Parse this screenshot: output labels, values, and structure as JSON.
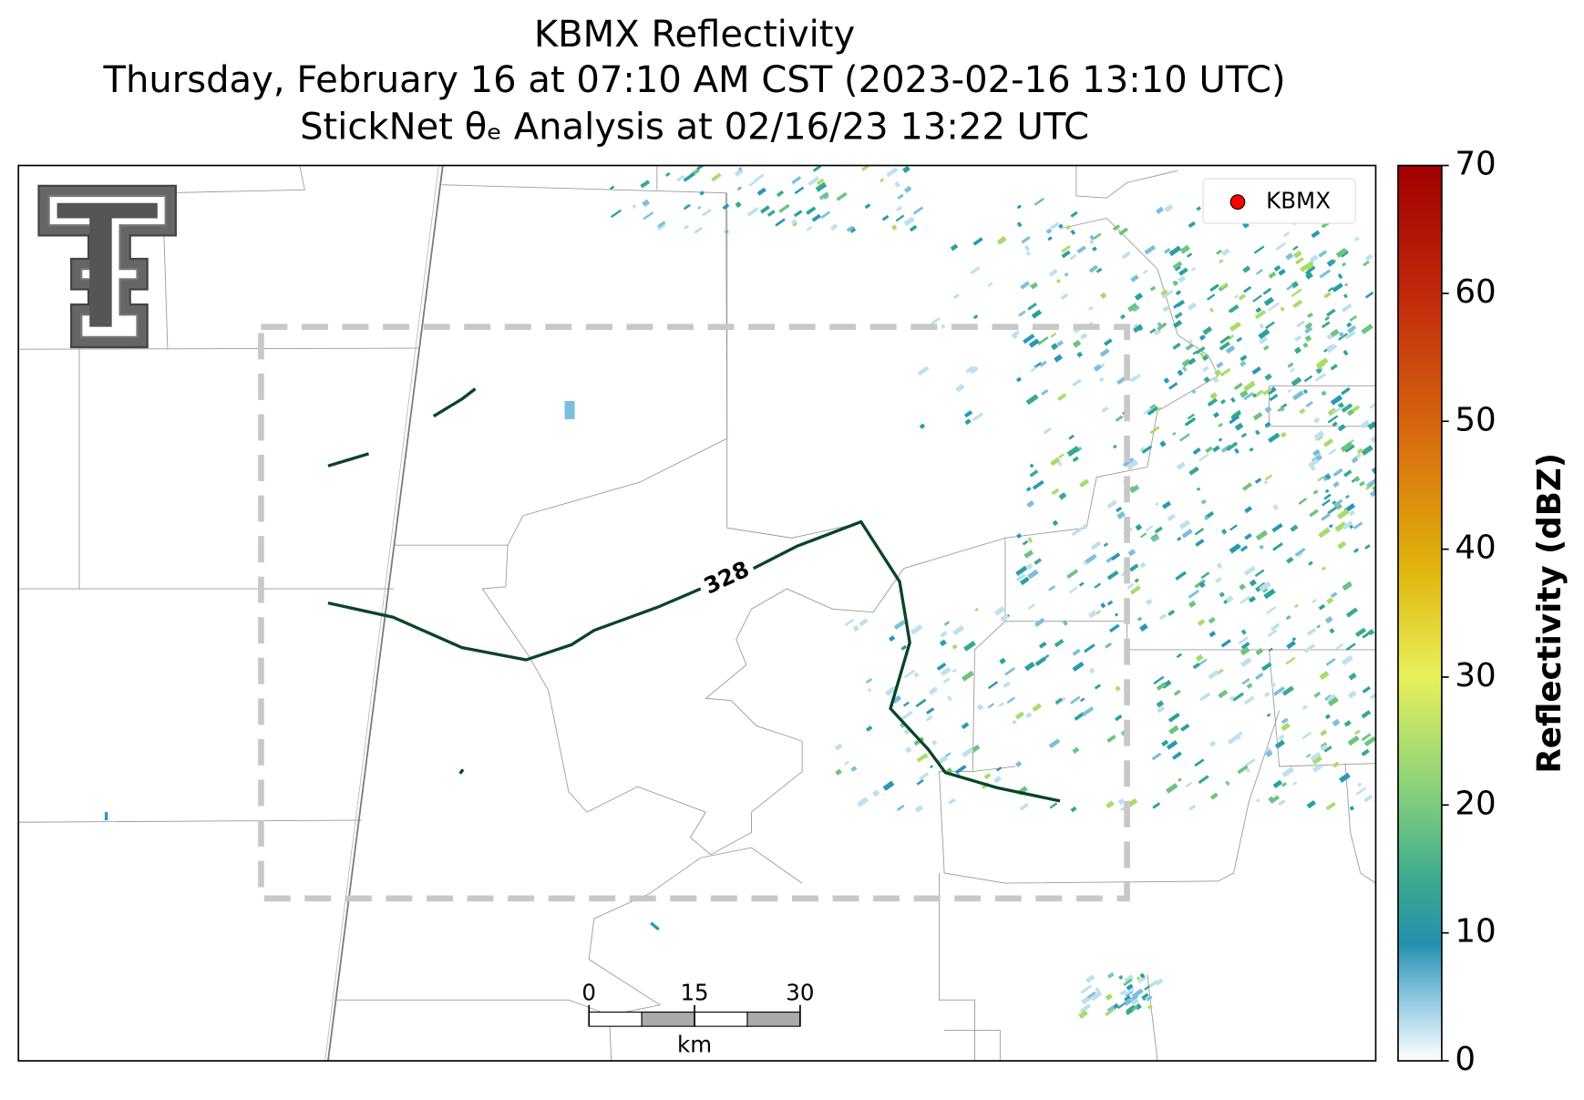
{
  "header": {
    "title": "KBMX Reflectivity",
    "time_line": "Thursday, February 16 at 07:10 AM CST (2023-02-16 13:10 UTC)",
    "analysis_line": "StickNet θₑ Analysis at 02/16/23 13:22 UTC"
  },
  "legend": {
    "label": "KBMX",
    "color": "#ff0000"
  },
  "contour": {
    "label": "328",
    "color": "#0b4424"
  },
  "colorbar": {
    "label": "Reflectivity (dBZ)",
    "lim": [
      0,
      70
    ],
    "ticks": [
      0,
      10,
      20,
      30,
      40,
      50,
      60,
      70
    ]
  },
  "scalebar": {
    "ticks": [
      0,
      15,
      30
    ],
    "unit": "km"
  }
}
